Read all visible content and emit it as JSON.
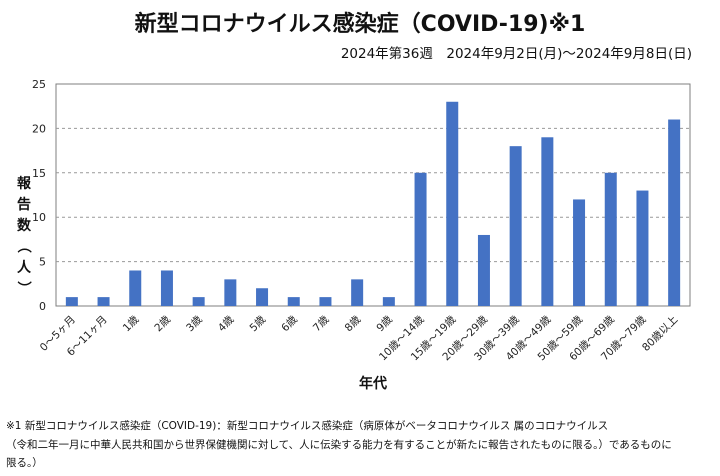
{
  "chart_data": {
    "type": "bar",
    "title": "新型コロナウイルス感染症（COVID-19)※1",
    "subtitle": "2024年第36週　2024年9月2日(月)～2024年9月8日(日)",
    "xlabel": "年代",
    "ylabel": "報告数（人）",
    "ylim": [
      0,
      25
    ],
    "yticks": [
      "0",
      "5",
      "10",
      "15",
      "20",
      "25"
    ],
    "grid": true,
    "bar_color": "#4472C4",
    "categories": [
      "0～5ヶ月",
      "6～11ヶ月",
      "1歳",
      "2歳",
      "3歳",
      "4歳",
      "5歳",
      "6歳",
      "7歳",
      "8歳",
      "9歳",
      "10歳～14歳",
      "15歳～19歳",
      "20歳～29歳",
      "30歳～39歳",
      "40歳～49歳",
      "50歳～59歳",
      "60歳～69歳",
      "70歳～79歳",
      "80歳以上"
    ],
    "values": [
      1,
      1,
      4,
      4,
      1,
      3,
      2,
      1,
      1,
      3,
      1,
      15,
      23,
      8,
      18,
      19,
      12,
      15,
      13,
      21
    ]
  },
  "footnote": {
    "line1": "※1 新型コロナウイルス感染症（COVID-19)：新型コロナウイルス感染症（病原体がベータコロナウイルス 属のコロナウイルス",
    "line2": "（令和二年一月に中華人民共和国から世界保健機関に対して、人に伝染する能力を有することが新たに報告されたものに限る。）であるものに",
    "line3": "限る。）"
  }
}
